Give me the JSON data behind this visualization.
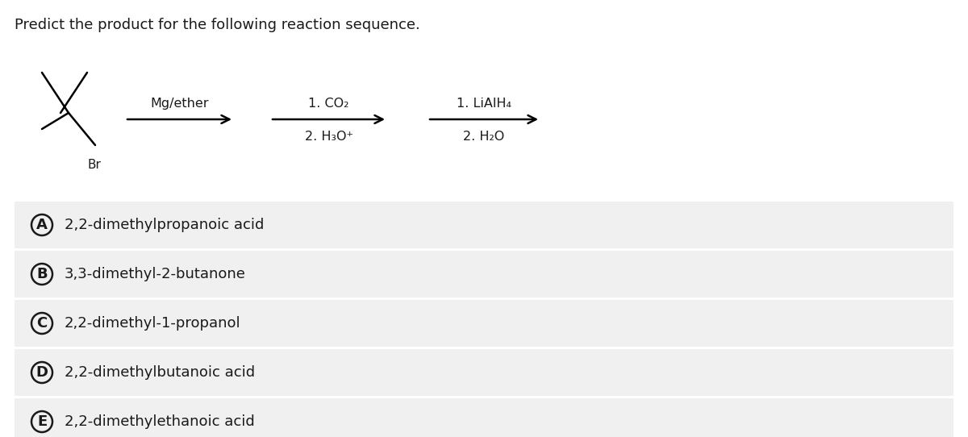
{
  "title": "Predict the product for the following reaction sequence.",
  "title_fontsize": 13,
  "bg_color": "#ffffff",
  "option_bg_color": "#f0f0f0",
  "text_color": "#1a1a1a",
  "options": [
    {
      "label": "A",
      "text": "2,2-dimethylpropanoic acid"
    },
    {
      "label": "B",
      "text": "3,3-dimethyl-2-butanone"
    },
    {
      "label": "C",
      "text": "2,2-dimethyl-1-propanol"
    },
    {
      "label": "D",
      "text": "2,2-dimethylbutanoic acid"
    },
    {
      "label": "E",
      "text": "2,2-dimethylethanoic acid"
    }
  ],
  "option_fontsize": 13,
  "reagent_fontsize": 11.5,
  "reagent1": "Mg/ether",
  "reagent2_line1": "1. CO₂",
  "reagent2_line2": "2. H₃O⁺",
  "reagent3_line1": "1. LiAlH₄",
  "reagent3_line2": "2. H₂O",
  "br_label": "Br"
}
